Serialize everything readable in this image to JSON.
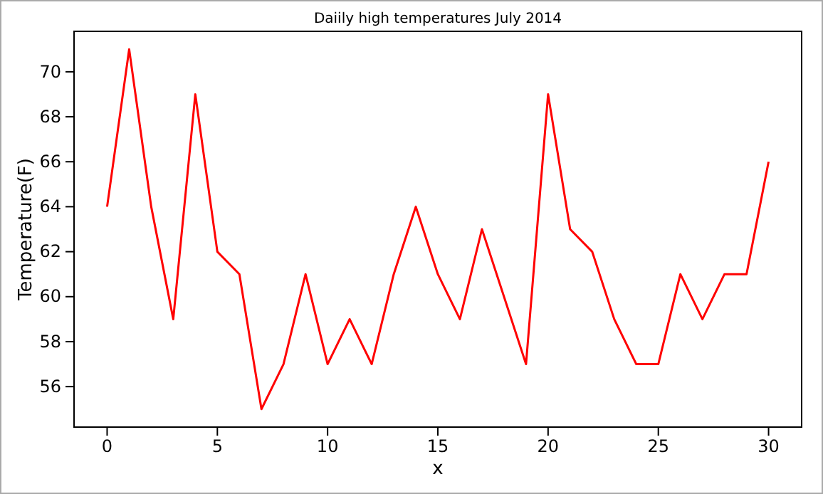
{
  "chart_data": {
    "type": "line",
    "title": "Daiily high temperatures July 2014",
    "xlabel": "x",
    "ylabel": "Temperature(F)",
    "x": [
      0,
      1,
      2,
      3,
      4,
      5,
      6,
      7,
      8,
      9,
      10,
      11,
      12,
      13,
      14,
      15,
      16,
      17,
      18,
      19,
      20,
      21,
      22,
      23,
      24,
      25,
      26,
      27,
      28,
      29,
      30
    ],
    "series": [
      {
        "color": "#ff0000",
        "values": [
          64,
          71,
          64,
          59,
          69,
          62,
          61,
          55,
          57,
          61,
          57,
          59,
          57,
          61,
          64,
          61,
          59,
          63,
          60,
          57,
          69,
          63,
          62,
          59,
          57,
          57,
          61,
          59,
          61,
          61,
          66
        ]
      }
    ],
    "xlim": [
      -1.5,
      31.5
    ],
    "ylim": [
      54.2,
      71.8
    ],
    "xticks": [
      0,
      5,
      10,
      15,
      20,
      25,
      30
    ],
    "yticks": [
      56,
      58,
      60,
      62,
      64,
      66,
      68,
      70
    ],
    "grid": false,
    "marker": "none",
    "line_style": "solid"
  }
}
